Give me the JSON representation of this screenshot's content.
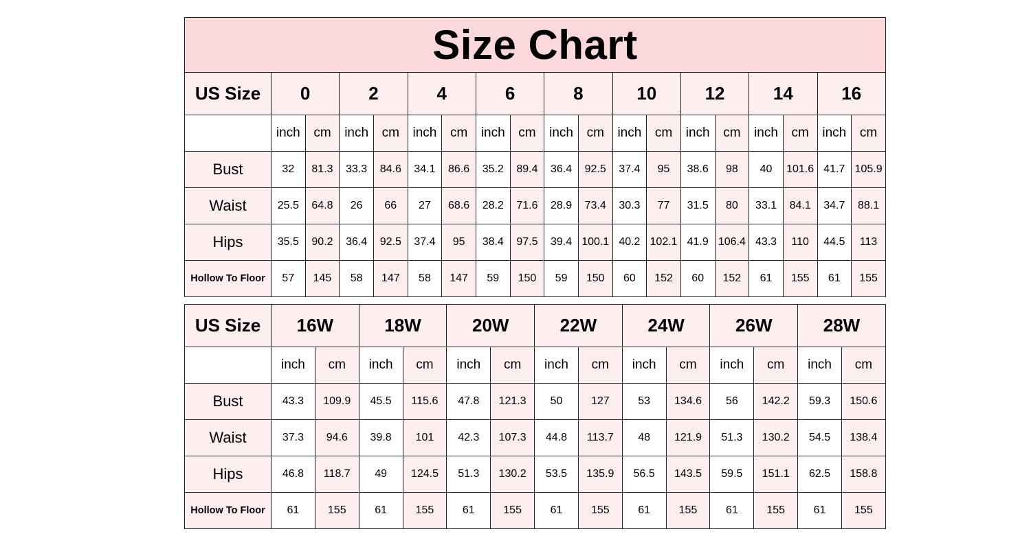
{
  "title": "Size Chart",
  "labels": {
    "us_size": "US Size",
    "inch": "inch",
    "cm": "cm",
    "bust": "Bust",
    "waist": "Waist",
    "hips": "Hips",
    "hollow": "Hollow To Floor"
  },
  "table1": {
    "sizes": [
      "0",
      "2",
      "4",
      "6",
      "8",
      "10",
      "12",
      "14",
      "16"
    ],
    "rows": [
      {
        "label": "Bust",
        "values": [
          "32",
          "81.3",
          "33.3",
          "84.6",
          "34.1",
          "86.6",
          "35.2",
          "89.4",
          "36.4",
          "92.5",
          "37.4",
          "95",
          "38.6",
          "98",
          "40",
          "101.6",
          "41.7",
          "105.9"
        ]
      },
      {
        "label": "Waist",
        "values": [
          "25.5",
          "64.8",
          "26",
          "66",
          "27",
          "68.6",
          "28.2",
          "71.6",
          "28.9",
          "73.4",
          "30.3",
          "77",
          "31.5",
          "80",
          "33.1",
          "84.1",
          "34.7",
          "88.1"
        ]
      },
      {
        "label": "Hips",
        "values": [
          "35.5",
          "90.2",
          "36.4",
          "92.5",
          "37.4",
          "95",
          "38.4",
          "97.5",
          "39.4",
          "100.1",
          "40.2",
          "102.1",
          "41.9",
          "106.4",
          "43.3",
          "110",
          "44.5",
          "113"
        ]
      },
      {
        "label": "Hollow To Floor",
        "values": [
          "57",
          "145",
          "58",
          "147",
          "58",
          "147",
          "59",
          "150",
          "59",
          "150",
          "60",
          "152",
          "60",
          "152",
          "61",
          "155",
          "61",
          "155"
        ]
      }
    ]
  },
  "table2": {
    "sizes": [
      "16W",
      "18W",
      "20W",
      "22W",
      "24W",
      "26W",
      "28W"
    ],
    "rows": [
      {
        "label": "Bust",
        "values": [
          "43.3",
          "109.9",
          "45.5",
          "115.6",
          "47.8",
          "121.3",
          "50",
          "127",
          "53",
          "134.6",
          "56",
          "142.2",
          "59.3",
          "150.6"
        ]
      },
      {
        "label": "Waist",
        "values": [
          "37.3",
          "94.6",
          "39.8",
          "101",
          "42.3",
          "107.3",
          "44.8",
          "113.7",
          "48",
          "121.9",
          "51.3",
          "130.2",
          "54.5",
          "138.4"
        ]
      },
      {
        "label": "Hips",
        "values": [
          "46.8",
          "118.7",
          "49",
          "124.5",
          "51.3",
          "130.2",
          "53.5",
          "135.9",
          "56.5",
          "143.5",
          "59.5",
          "151.1",
          "62.5",
          "158.8"
        ]
      },
      {
        "label": "Hollow To Floor",
        "values": [
          "61",
          "155",
          "61",
          "155",
          "61",
          "155",
          "61",
          "155",
          "61",
          "155",
          "61",
          "155",
          "61",
          "155"
        ]
      }
    ]
  }
}
